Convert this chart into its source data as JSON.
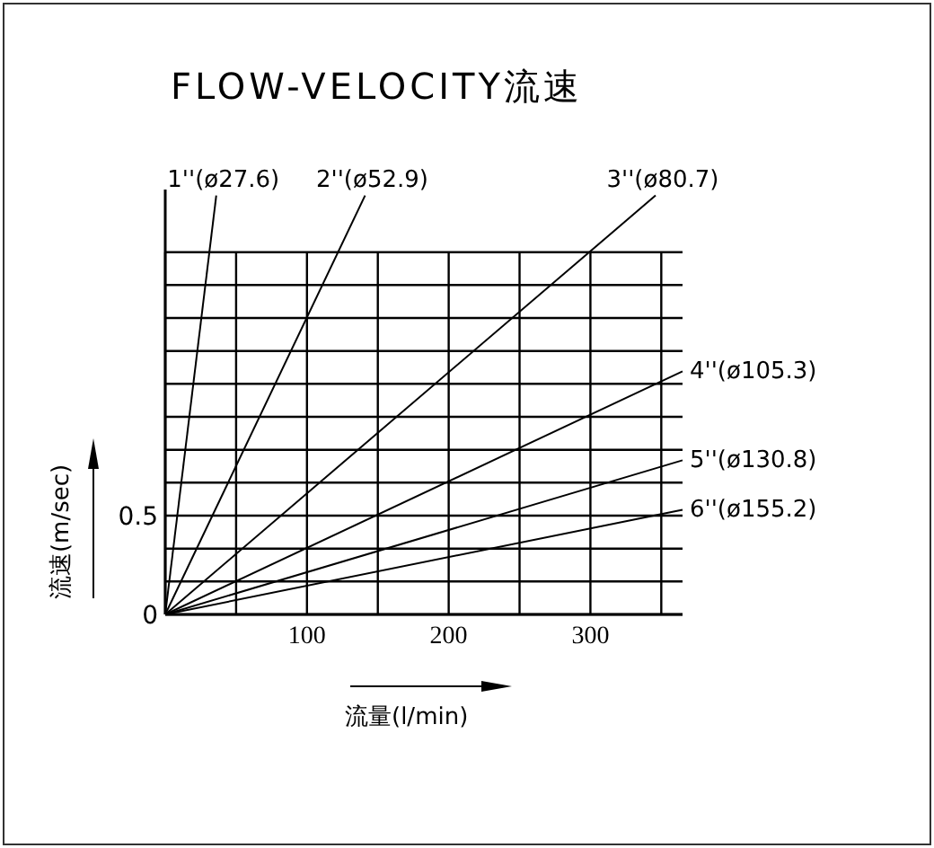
{
  "chart_data": {
    "type": "line",
    "title": "FLOW-VELOCITY流速",
    "xlabel": "流量(l/min)",
    "ylabel": "流速(m/sec)",
    "xlim": [
      0,
      365
    ],
    "ylim": [
      0,
      2.15
    ],
    "xticks": [
      {
        "value": 0,
        "label": null
      },
      {
        "value": 50,
        "label": null
      },
      100,
      {
        "value": 150,
        "label": null
      },
      200,
      {
        "value": 250,
        "label": null
      },
      300,
      {
        "value": 350,
        "label": null
      }
    ],
    "yticks": [
      0,
      {
        "value": 0.167,
        "label": null
      },
      {
        "value": 0.333,
        "label": null
      },
      0.5,
      {
        "value": 0.667,
        "label": null
      },
      {
        "value": 0.833,
        "label": null
      },
      {
        "value": 1,
        "label": null
      },
      {
        "value": 1.167,
        "label": null
      },
      {
        "value": 1.333,
        "label": null
      },
      {
        "value": 1.5,
        "label": null
      },
      {
        "value": 1.667,
        "label": null
      },
      {
        "value": 1.833,
        "label": null
      }
    ],
    "grid": true,
    "legend": false,
    "marker": "none",
    "line_style": "solid",
    "series": [
      {
        "name": "1''(ø27.6)",
        "color": "#000000",
        "x": [
          0,
          36
        ],
        "values": [
          0,
          2.12
        ]
      },
      {
        "name": "2''(ø52.9)",
        "color": "#000000",
        "x": [
          0,
          141
        ],
        "values": [
          0,
          2.12
        ]
      },
      {
        "name": "3''(ø80.7)",
        "color": "#000000",
        "x": [
          0,
          346
        ],
        "values": [
          0,
          2.12
        ]
      },
      {
        "name": "4''(ø105.3)",
        "color": "#000000",
        "x": [
          0,
          365
        ],
        "values": [
          0,
          1.23
        ]
      },
      {
        "name": "5''(ø130.8)",
        "color": "#000000",
        "x": [
          0,
          365
        ],
        "values": [
          0,
          0.78
        ]
      },
      {
        "name": "6''(ø155.2)",
        "color": "#000000",
        "x": [
          0,
          365
        ],
        "values": [
          0,
          0.53
        ]
      }
    ]
  }
}
